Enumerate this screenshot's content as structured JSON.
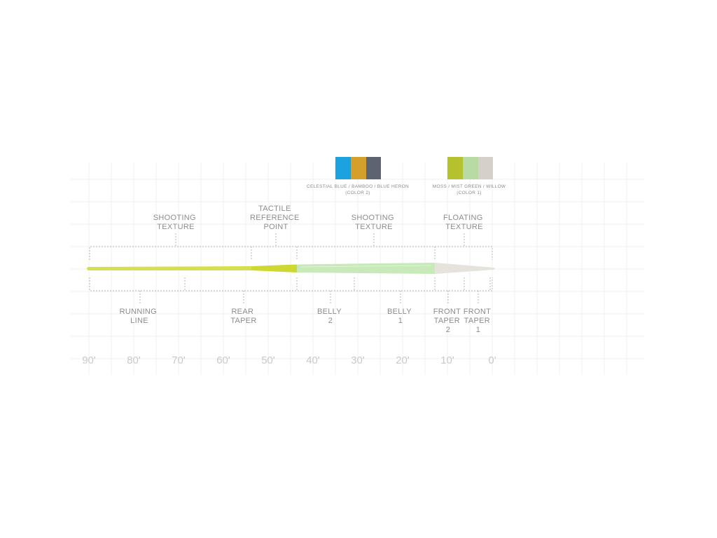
{
  "swatches": [
    {
      "label_line1": "CELESTIAL BLUE / BAMBOO / BLUE HERON",
      "label_line2": "(COLOR 2)",
      "colors": [
        "#1ba2df",
        "#d4a02b",
        "#5b6470"
      ]
    },
    {
      "label_line1": "MOSS / MIST GREEN / WILLOW",
      "label_line2": "(COLOR 1)",
      "colors": [
        "#b5c22e",
        "#b7dba3",
        "#d6d1c8"
      ]
    }
  ],
  "top_labels": [
    {
      "lines": [
        "SHOOTING",
        "TEXTURE"
      ]
    },
    {
      "lines": [
        "TACTILE",
        "REFERENCE",
        "POINT"
      ]
    },
    {
      "lines": [
        "SHOOTING",
        "TEXTURE"
      ]
    },
    {
      "lines": [
        "FLOATING",
        "TEXTURE"
      ]
    }
  ],
  "bottom_labels": [
    {
      "lines": [
        "RUNNING",
        "LINE"
      ]
    },
    {
      "lines": [
        "REAR",
        "TAPER"
      ]
    },
    {
      "lines": [
        "BELLY",
        "2"
      ]
    },
    {
      "lines": [
        "BELLY",
        "1"
      ]
    },
    {
      "lines": [
        "FRONT",
        "TAPER",
        "2"
      ]
    },
    {
      "lines": [
        "FRONT",
        "TAPER",
        "1"
      ]
    }
  ],
  "scale_ticks": [
    "90'",
    "80'",
    "70'",
    "60'",
    "50'",
    "40'",
    "30'",
    "20'",
    "10'",
    "0'"
  ],
  "line_colors": {
    "running": "#d8df4c",
    "reference": "#cfd830",
    "belly": "#c8eab8",
    "tip": "#e6e3dc"
  }
}
